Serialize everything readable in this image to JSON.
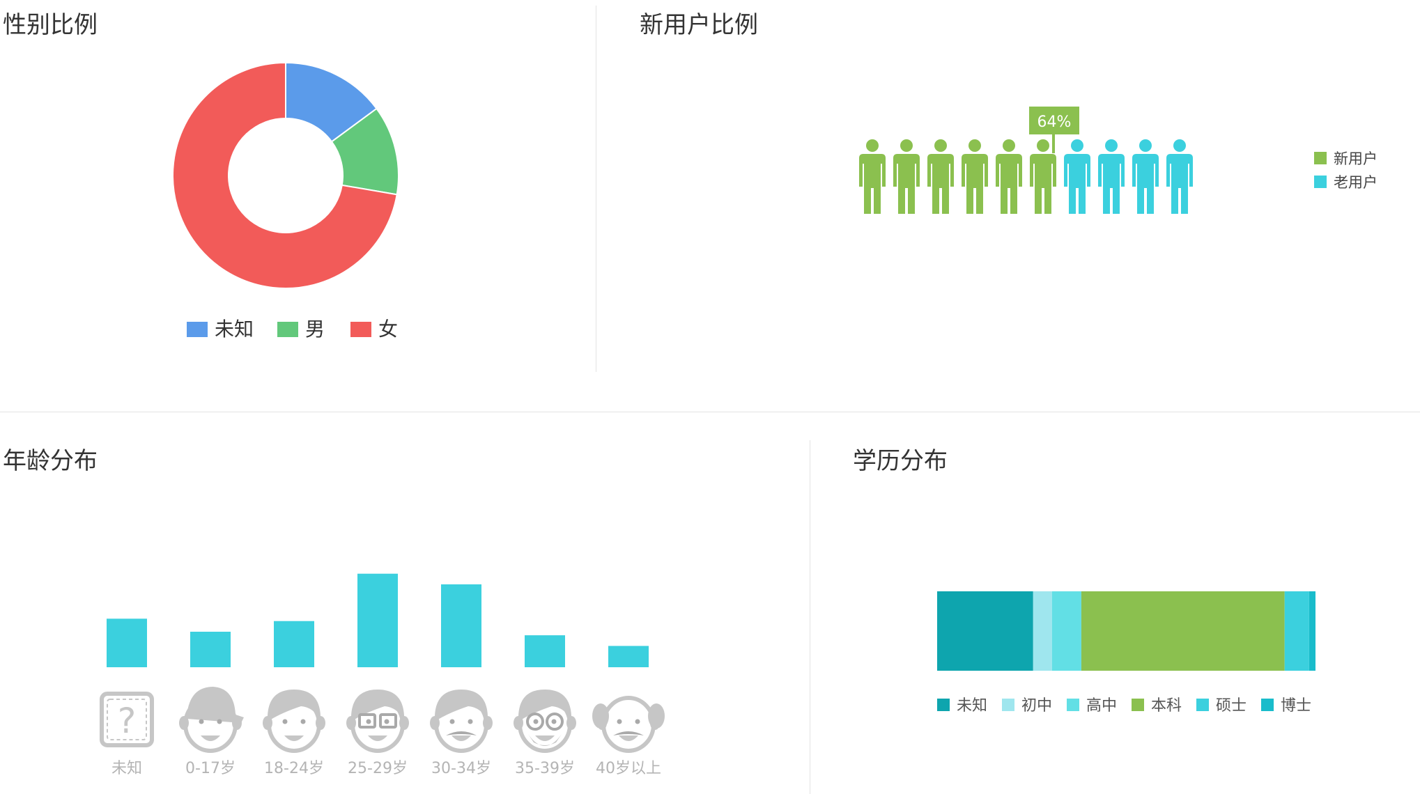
{
  "panels": {
    "gender": {
      "title": "性别比例"
    },
    "new_user": {
      "title": "新用户比例"
    },
    "age": {
      "title": "年龄分布"
    },
    "education": {
      "title": "学历分布"
    }
  },
  "chart_data": [
    {
      "id": "gender",
      "type": "pie",
      "donut": true,
      "legend_position": "bottom",
      "categories": [
        "未知",
        "男",
        "女"
      ],
      "values": [
        14.9,
        12.8,
        72.3
      ],
      "colors": [
        "#5b9bea",
        "#62c87b",
        "#f25b59"
      ]
    },
    {
      "id": "new_user",
      "type": "pictograph",
      "legend_position": "right",
      "total_icons": 10,
      "label": "64%",
      "series": [
        {
          "name": "新用户",
          "value": 64,
          "color": "#8bc04f"
        },
        {
          "name": "老用户",
          "value": 36,
          "color": "#3bd0de"
        }
      ]
    },
    {
      "id": "age",
      "type": "bar",
      "categories": [
        "未知",
        "0-17岁",
        "18-24岁",
        "25-29岁",
        "30-34岁",
        "35-39岁",
        "40岁以上"
      ],
      "icons": [
        "question-icon",
        "child-cap-icon",
        "young-icon",
        "glasses-icon",
        "mustache-icon",
        "round-glasses-beard-icon",
        "bald-elder-icon"
      ],
      "values": [
        41,
        30,
        39,
        79,
        70,
        27,
        18
      ],
      "color": "#3bd0de",
      "grid": false
    },
    {
      "id": "education",
      "type": "stacked-bar",
      "orientation": "horizontal",
      "legend_position": "bottom",
      "series": [
        {
          "name": "未知",
          "value": 25.5,
          "color": "#0ea5ae"
        },
        {
          "name": "初中",
          "value": 5.0,
          "color": "#9fe6ee"
        },
        {
          "name": "高中",
          "value": 7.8,
          "color": "#62dfe5"
        },
        {
          "name": "本科",
          "value": 54.0,
          "color": "#8bc04f"
        },
        {
          "name": "硕士",
          "value": 6.5,
          "color": "#3bd0de"
        },
        {
          "name": "博士",
          "value": 1.7,
          "color": "#19bccb"
        }
      ]
    }
  ]
}
